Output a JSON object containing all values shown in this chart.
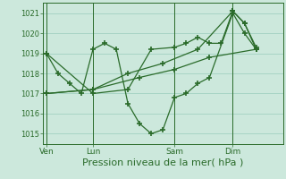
{
  "bg_color": "#cce8dc",
  "grid_color": "#99ccbb",
  "line_color": "#2a6b2a",
  "xlabel": "Pression niveau de la mer( hPa )",
  "xlabel_fontsize": 8,
  "yticks": [
    1015,
    1016,
    1017,
    1018,
    1019,
    1020,
    1021
  ],
  "ylim": [
    1014.5,
    1021.5
  ],
  "xtick_labels": [
    "Ven",
    "Lun",
    "Sam",
    "Dim"
  ],
  "xtick_positions": [
    0,
    4,
    11,
    16
  ],
  "vline_positions": [
    0,
    4,
    11,
    16
  ],
  "xlim": [
    -0.3,
    20.3
  ],
  "series": [
    {
      "x": [
        0,
        1,
        2,
        3,
        4,
        5,
        6,
        7,
        8,
        9,
        10,
        11,
        12,
        13,
        14,
        16,
        17,
        18
      ],
      "y": [
        1019,
        1018,
        1017.5,
        1017,
        1019.2,
        1019.5,
        1019.2,
        1016.5,
        1015.5,
        1015,
        1015.2,
        1016.8,
        1017,
        1017.5,
        1017.8,
        1021,
        1020,
        1019.2
      ]
    },
    {
      "x": [
        0,
        4,
        7,
        9,
        11,
        12,
        13,
        14,
        15,
        16,
        17,
        18
      ],
      "y": [
        1019,
        1017,
        1017.2,
        1019.2,
        1019.3,
        1019.5,
        1019.8,
        1019.5,
        1019.5,
        1021.1,
        1020.5,
        1019.2
      ]
    },
    {
      "x": [
        0,
        4,
        8,
        11,
        14,
        18
      ],
      "y": [
        1017,
        1017.2,
        1017.8,
        1018.2,
        1018.8,
        1019.2
      ]
    },
    {
      "x": [
        0,
        4,
        7,
        10,
        13,
        16,
        17,
        18
      ],
      "y": [
        1017,
        1017.2,
        1018,
        1018.5,
        1019.2,
        1021.1,
        1020.5,
        1019.3
      ]
    }
  ]
}
